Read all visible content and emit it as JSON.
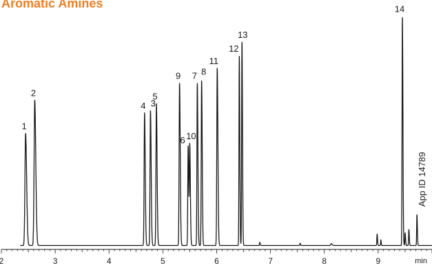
{
  "chart_data": {
    "type": "line",
    "title": "Aromatic Amines",
    "xlabel": "min",
    "ylabel": "",
    "xlim": [
      2.0,
      10.0
    ],
    "x_ticks": [
      2,
      3,
      4,
      5,
      6,
      7,
      8,
      9
    ],
    "ylim": [
      0,
      100
    ],
    "grid": false,
    "legend": "none",
    "annotation": "App ID 14789",
    "baseline": 0.5,
    "line_color": "#1a1a1a",
    "title_color": "#ef7d22",
    "peaks": [
      {
        "label": "1",
        "x": 2.45,
        "y": 49,
        "w": 0.012
      },
      {
        "label": "2",
        "x": 2.62,
        "y": 63.5,
        "w": 0.012
      },
      {
        "label": "4",
        "x": 4.66,
        "y": 58,
        "w": 0.008
      },
      {
        "label": "3",
        "x": 4.77,
        "y": 59,
        "w": 0.008
      },
      {
        "label": "5",
        "x": 4.88,
        "y": 62,
        "w": 0.008
      },
      {
        "label": "9",
        "x": 5.31,
        "y": 71,
        "w": 0.008
      },
      {
        "label": "6",
        "x": 5.47,
        "y": 43.5,
        "w": 0.007
      },
      {
        "label": "10",
        "x": 5.5,
        "y": 43.5,
        "w": 0.007
      },
      {
        "label": "7",
        "x": 5.64,
        "y": 71,
        "w": 0.007
      },
      {
        "label": "8",
        "x": 5.72,
        "y": 72,
        "w": 0.007
      },
      {
        "label": "11",
        "x": 6.01,
        "y": 77.5,
        "w": 0.008
      },
      {
        "label": "12",
        "x": 6.42,
        "y": 83,
        "w": 0.006
      },
      {
        "label": "13",
        "x": 6.47,
        "y": 89,
        "w": 0.006
      },
      {
        "label": "14",
        "x": 9.45,
        "y": 100,
        "w": 0.006
      }
    ],
    "minor_peaks": [
      {
        "x": 6.8,
        "y": 1.4,
        "w": 0.005
      },
      {
        "x": 7.55,
        "y": 1.0,
        "w": 0.005
      },
      {
        "x": 8.13,
        "y": 0.8,
        "w": 0.01
      },
      {
        "x": 8.98,
        "y": 5.0,
        "w": 0.005
      },
      {
        "x": 9.05,
        "y": 2.5,
        "w": 0.004
      },
      {
        "x": 9.5,
        "y": 5.5,
        "w": 0.005
      },
      {
        "x": 9.57,
        "y": 7.0,
        "w": 0.005
      },
      {
        "x": 9.72,
        "y": 13.5,
        "w": 0.005
      }
    ]
  }
}
